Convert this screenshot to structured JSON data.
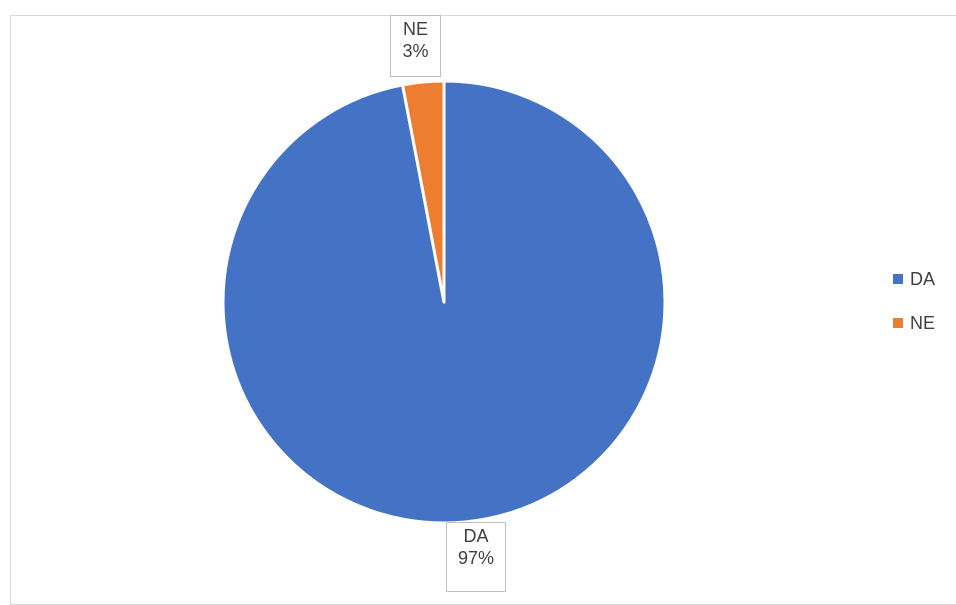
{
  "chart_data": {
    "type": "pie",
    "categories": [
      "DA",
      "NE"
    ],
    "values": [
      97,
      3
    ],
    "colors": [
      "#4472C4",
      "#ED7D31"
    ],
    "data_labels": [
      {
        "category": "DA",
        "percent": "97%"
      },
      {
        "category": "NE",
        "percent": "3%"
      }
    ],
    "legend": {
      "placement": "right",
      "entries": [
        "DA",
        "NE"
      ]
    },
    "title": ""
  }
}
